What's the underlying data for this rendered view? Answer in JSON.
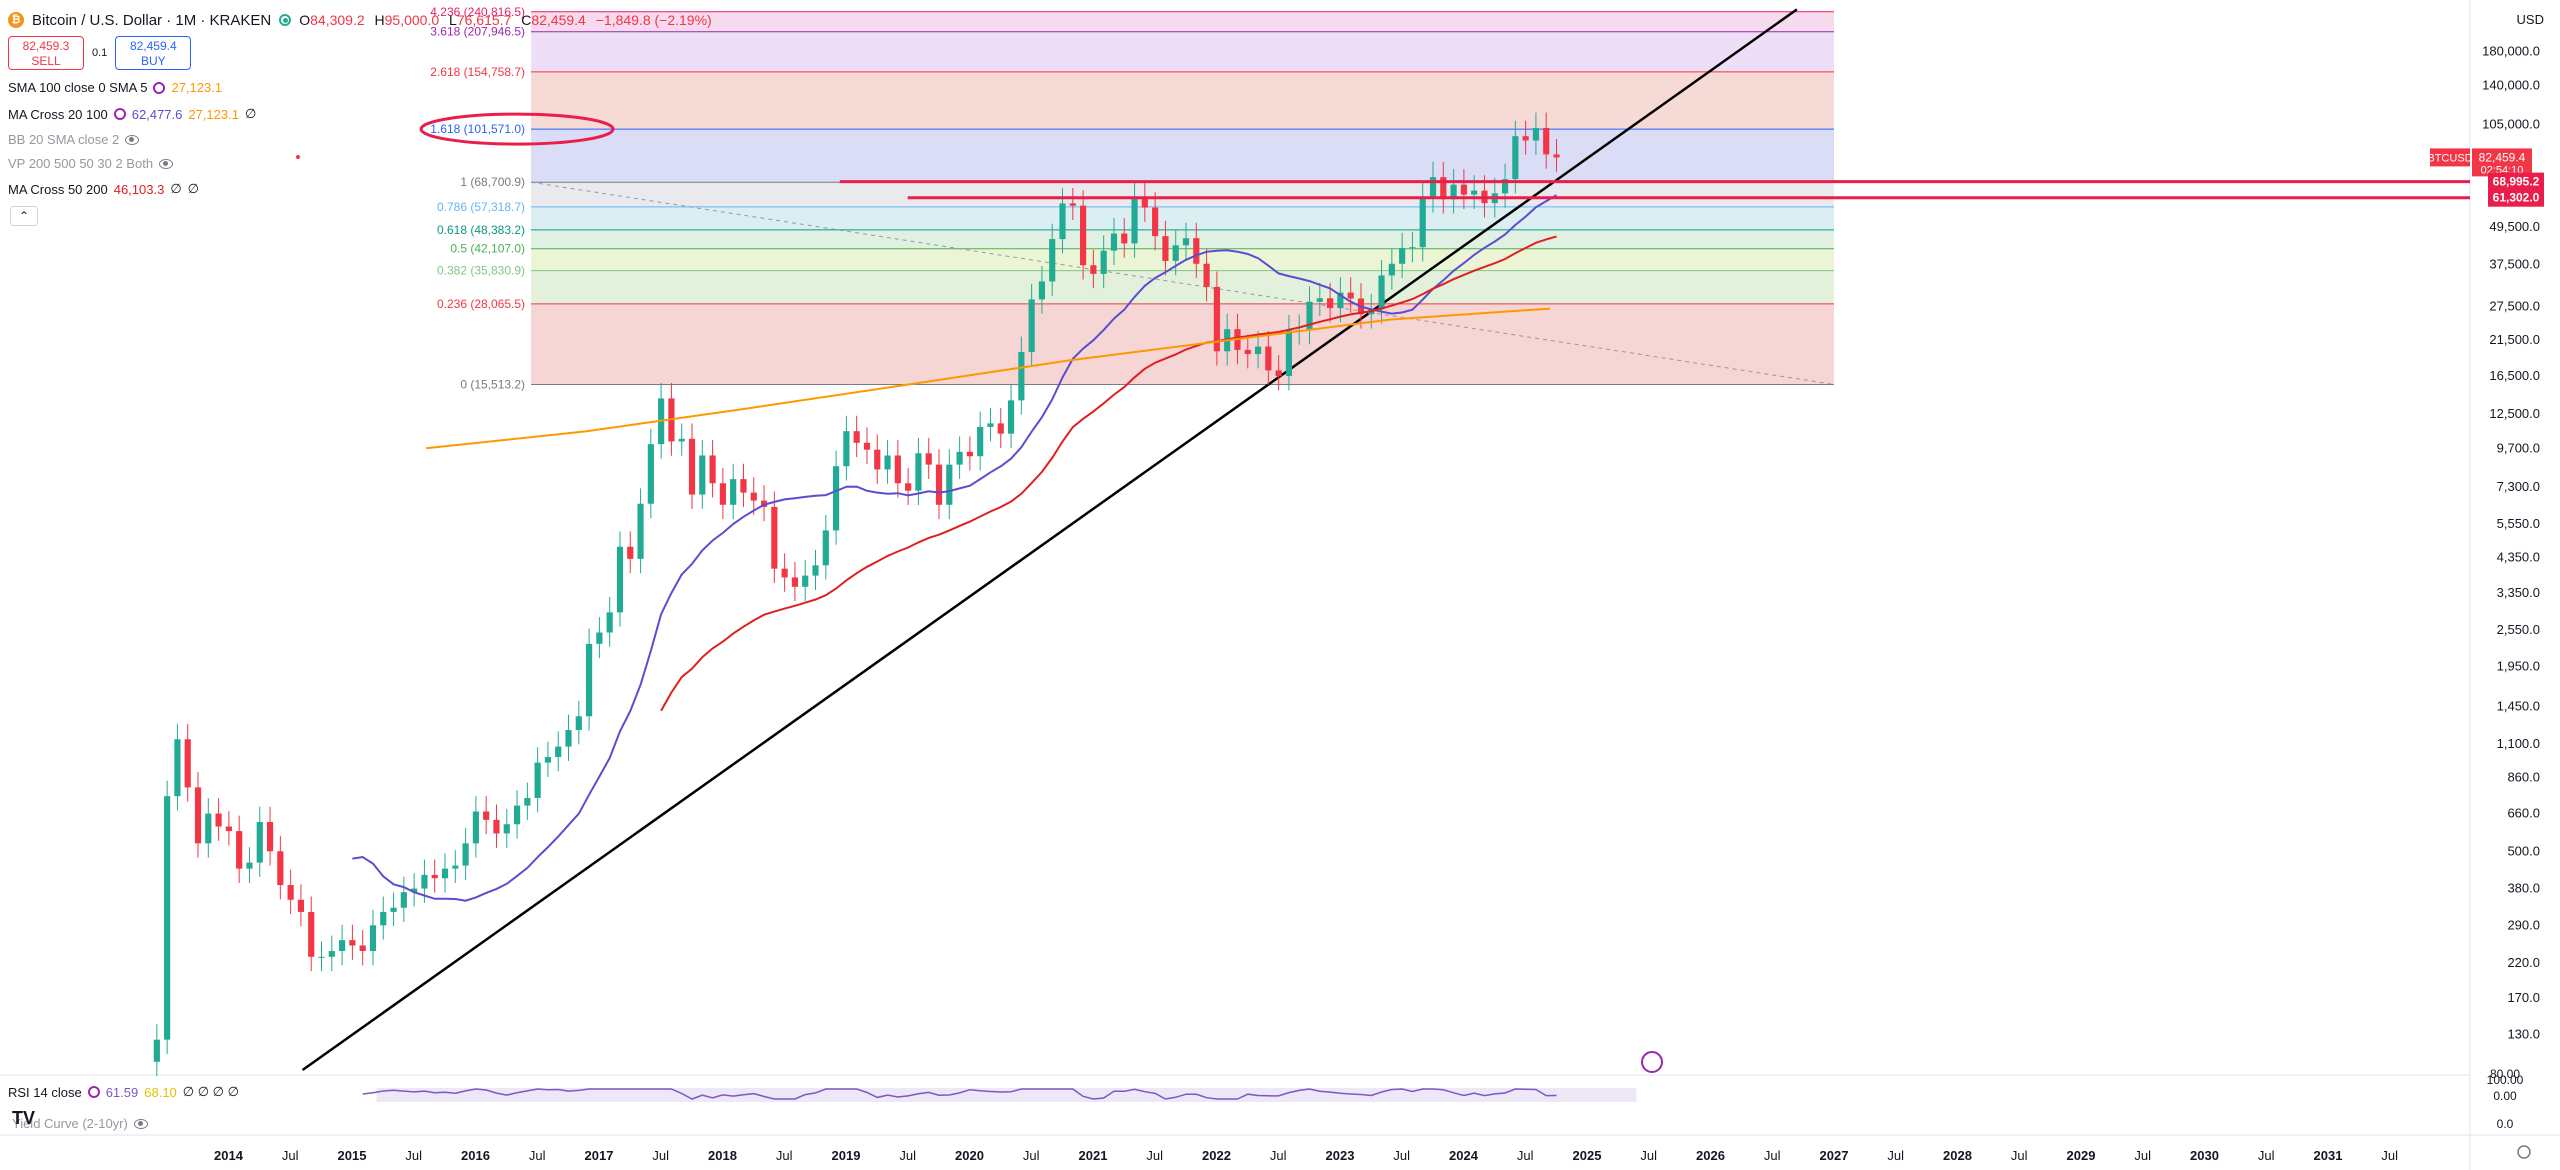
{
  "header": {
    "symbol_title": "Bitcoin / U.S. Dollar · 1M · KRAKEN",
    "open_label": "O",
    "open": "84,309.2",
    "high_label": "H",
    "high": "95,000.0",
    "low_label": "L",
    "low": "76,615.7",
    "close_label": "C",
    "close": "82,459.4",
    "change": "−1,849.8 (−2.19%)"
  },
  "trade": {
    "sell_price": "82,459.3",
    "sell_label": "SELL",
    "spread": "0.1",
    "buy_price": "82,459.4",
    "buy_label": "BUY"
  },
  "indicators": [
    {
      "name": "SMA 100 close 0 SMA 5",
      "v1": "27,123.1",
      "v2": ""
    },
    {
      "name": "MA Cross 20 100",
      "v1": "62,477.6",
      "v2": "27,123.1",
      "v3": "∅"
    },
    {
      "name": "BB 20 SMA close 2",
      "v1": "",
      "v2": ""
    },
    {
      "name": "VP 200 500 50 30 2 Both",
      "v1": "",
      "v2": ""
    },
    {
      "name": "MA Cross 50 200",
      "v1": "46,103.3",
      "v2": "∅",
      "v3": "∅"
    }
  ],
  "collapse_label": "⌃",
  "currency": "USD",
  "rsi": {
    "name": "RSI 14 close",
    "v1": "61.59",
    "v2": "68.10",
    "extra": "∅ ∅ ∅ ∅"
  },
  "yield_curve": {
    "name": "Yield Curve (2-10yr)"
  },
  "logo": "TV",
  "colors": {
    "up": "#22ab94",
    "down": "#f23645",
    "ma_purple": "#5c4ccf",
    "ma_red": "#e02020",
    "ma_orange": "#ff9800",
    "trendline": "#000000",
    "hline": "#e91e4a",
    "price_tag": "#f23645"
  },
  "chart_data": {
    "type": "candlestick",
    "title": "Bitcoin / U.S. Dollar · 1M · KRAKEN",
    "scale": "log",
    "ylim": [
      100,
      230000
    ],
    "y_ticks": [
      "180,000.0",
      "140,000.0",
      "105,000.0",
      "49,500.0",
      "37,500.0",
      "27,500.0",
      "21,500.0",
      "16,500.0",
      "12,500.0",
      "9,700.0",
      "7,300.0",
      "5,550.0",
      "4,350.0",
      "3,350.0",
      "2,550.0",
      "1,950.0",
      "1,450.0",
      "1,100.0",
      "860.0",
      "660.0",
      "500.0",
      "380.0",
      "290.0",
      "220.0",
      "170.0",
      "130.0"
    ],
    "y_tick_values": [
      180000,
      140000,
      105000,
      49500,
      37500,
      27500,
      21500,
      16500,
      12500,
      9700,
      7300,
      5550,
      4350,
      3350,
      2550,
      1950,
      1450,
      1100,
      860,
      660,
      500,
      380,
      290,
      220,
      170,
      130
    ],
    "x_ticks": [
      "2014",
      "Jul",
      "2015",
      "Jul",
      "2016",
      "Jul",
      "2017",
      "Jul",
      "2018",
      "Jul",
      "2019",
      "Jul",
      "2020",
      "Jul",
      "2021",
      "Jul",
      "2022",
      "Jul",
      "2023",
      "Jul",
      "2024",
      "Jul",
      "2025",
      "Jul",
      "2026",
      "Jul",
      "2027",
      "Jul",
      "2028",
      "Jul",
      "2029",
      "Jul",
      "2030",
      "Jul",
      "2031",
      "Jul"
    ],
    "x_tick_values": [
      2014,
      2014.5,
      2015,
      2015.5,
      2016,
      2016.5,
      2017,
      2017.5,
      2018,
      2018.5,
      2019,
      2019.5,
      2020,
      2020.5,
      2021,
      2021.5,
      2022,
      2022.5,
      2023,
      2023.5,
      2024,
      2024.5,
      2025,
      2025.5,
      2026,
      2026.5,
      2027,
      2027.5,
      2028,
      2028.5,
      2029,
      2029.5,
      2030,
      2030.5,
      2031,
      2031.5
    ],
    "xlim": [
      2012.15,
      2032.15
    ],
    "candles_start": 2013.42,
    "monthly_closes": [
      125,
      750,
      1140,
      800,
      530,
      660,
      600,
      580,
      440,
      460,
      620,
      500,
      390,
      350,
      320,
      230,
      230,
      240,
      260,
      250,
      240,
      290,
      320,
      330,
      370,
      380,
      420,
      410,
      440,
      450,
      530,
      670,
      630,
      570,
      610,
      700,
      740,
      960,
      1000,
      1080,
      1220,
      1350,
      2300,
      2500,
      2900,
      4700,
      4300,
      6450,
      10000,
      14000,
      10200,
      10400,
      6900,
      9200,
      7500,
      6400,
      7730,
      7000,
      6600,
      6300,
      4000,
      3750,
      3500,
      3800,
      4100,
      5300,
      8500,
      11000,
      10100,
      9600,
      8300,
      9200,
      7500,
      7100,
      9350,
      8600,
      6400,
      8600,
      9450,
      9150,
      11350,
      11650,
      10800,
      13800,
      19700,
      29000,
      33100,
      45200,
      58800,
      57800,
      37300,
      35000,
      41500,
      47100,
      43800,
      61300,
      57000,
      46200,
      38500,
      43200,
      45500,
      37700,
      31800,
      19800,
      23300,
      20000,
      19400,
      20500,
      17200,
      16500,
      23100,
      23150,
      28500,
      29250,
      27200,
      30500,
      29200,
      26000,
      27000,
      34600,
      37700,
      42300,
      42600,
      61100,
      71300,
      60600,
      67500,
      62700,
      64600,
      58900,
      63300,
      70300,
      96400,
      93400,
      102400,
      84300,
      82459
    ],
    "sma100": {
      "start": 2015.6,
      "values": [
        9700,
        11000,
        13000,
        15500,
        18500,
        21500,
        25000,
        27100
      ]
    },
    "fib": {
      "levels": [
        {
          "ratio": "0",
          "value": 15513.2,
          "label": "0 (15,513.2)"
        },
        {
          "ratio": "0.236",
          "value": 28065.5,
          "label": "0.236 (28,065.5)"
        },
        {
          "ratio": "0.382",
          "value": 35830.9,
          "label": "0.382 (35,830.9)"
        },
        {
          "ratio": "0.5",
          "value": 42107.0,
          "label": "0.5 (42,107.0)"
        },
        {
          "ratio": "0.618",
          "value": 48383.2,
          "label": "0.618 (48,383.2)"
        },
        {
          "ratio": "0.786",
          "value": 57318.7,
          "label": "0.786 (57,318.7)"
        },
        {
          "ratio": "1",
          "value": 68700.9,
          "label": "1 (68,700.9)"
        },
        {
          "ratio": "1.618",
          "value": 101571.0,
          "label": "1.618 (101,571.0)"
        },
        {
          "ratio": "2.618",
          "value": 154758.7,
          "label": "2.618 (154,758.7)"
        },
        {
          "ratio": "3.618",
          "value": 207946.5,
          "label": "3.618 (207,946.5)"
        },
        {
          "ratio": "4.236",
          "value": 240816.5,
          "label": "4.236 (240,816.5)"
        }
      ],
      "x_start": 2016.45,
      "x_end": 2027.0
    },
    "horizontal_levels": [
      {
        "value": 68995.2,
        "label": "68,995.2"
      },
      {
        "value": 61302.0,
        "label": "61,302.0"
      }
    ],
    "price_tags": [
      {
        "label": "BTCUSD",
        "value": 82459.4,
        "text": "82,459.4",
        "sub": "02:54:10"
      }
    ],
    "trendline": {
      "x1": 2014.6,
      "y1": 100,
      "x2": 2026.7,
      "y2": 245000
    },
    "rsi_ticks": [
      "100.00",
      "80.00",
      "0.00"
    ],
    "yield_curve_ticks": [
      "0.0"
    ]
  }
}
